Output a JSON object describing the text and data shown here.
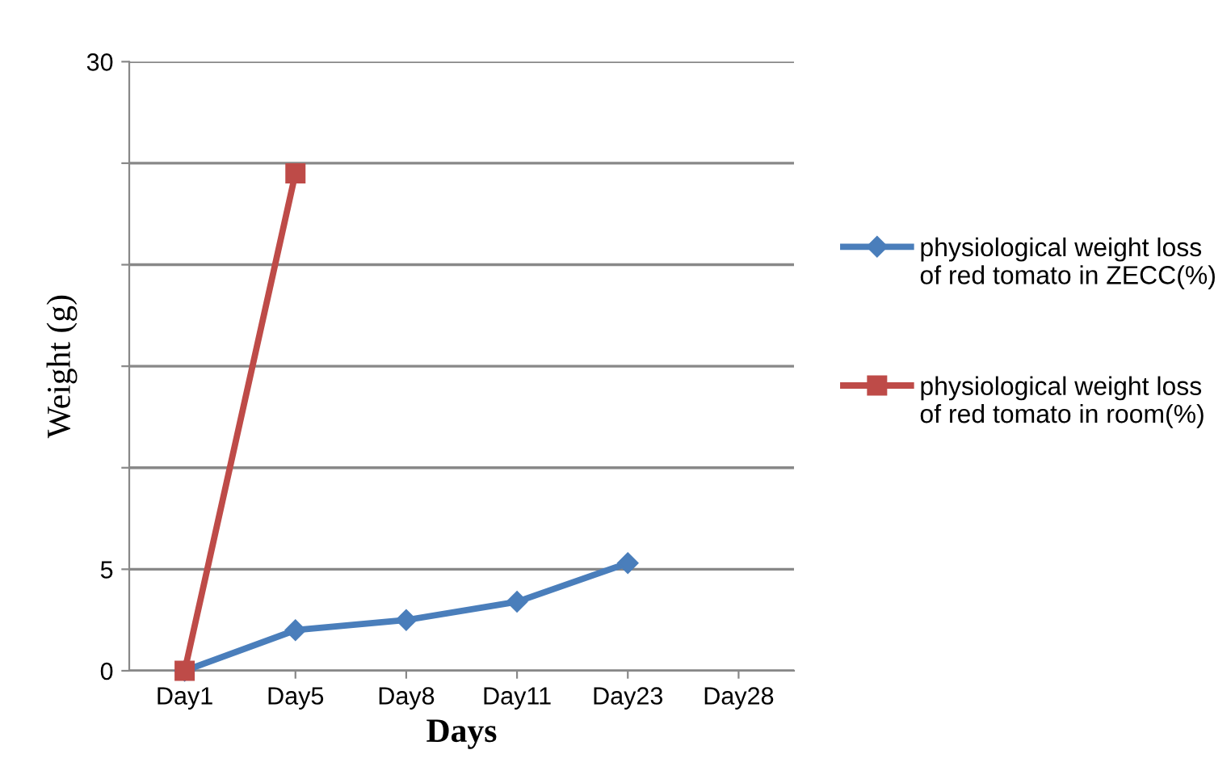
{
  "chart_data": {
    "type": "line",
    "xlabel": "Days",
    "ylabel": "Weight (g)",
    "categories": [
      "Day1",
      "Day5",
      "Day8",
      "Day11",
      "Day23",
      "Day28"
    ],
    "series": [
      {
        "name": "physiological weight loss  of red tomato in ZECC(%)",
        "color": "#4a7ebb",
        "marker": "diamond",
        "values": [
          0,
          2.0,
          2.5,
          3.4,
          5.3,
          null
        ]
      },
      {
        "name": "physiological weight loss of red tomato in room(%)",
        "color": "#be4b48",
        "marker": "square",
        "values": [
          0,
          24.5,
          null,
          null,
          null,
          null
        ]
      }
    ],
    "ylim": [
      0,
      30
    ],
    "yticks": [
      0,
      5,
      {
        "value": 10,
        "label": null
      },
      {
        "value": 15,
        "label": null
      },
      {
        "value": 20,
        "label": null
      },
      {
        "value": 25,
        "label": null
      },
      30
    ],
    "grid": "y",
    "legend": "right",
    "line_style": "solid"
  }
}
